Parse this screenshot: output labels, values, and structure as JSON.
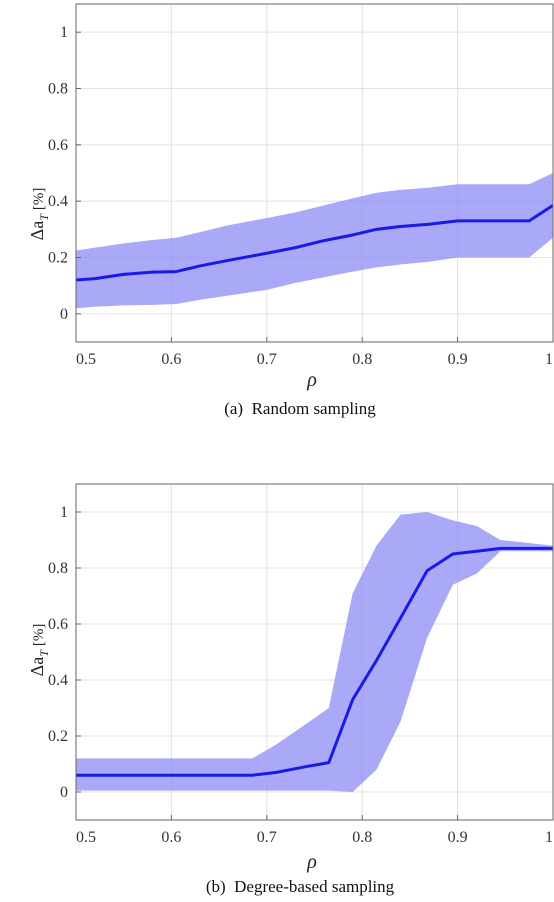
{
  "chart_data": [
    {
      "type": "line",
      "caption": "(a)  Random sampling",
      "xlabel": "ρ",
      "ylabel": {
        "main": "Δa",
        "sub": "T",
        "unit": "[%]"
      },
      "xlim": [
        0.5,
        1.0
      ],
      "ylim": [
        -0.1,
        1.1
      ],
      "xticks": [
        "0.5",
        "0.6",
        "0.7",
        "0.8",
        "0.9",
        "1"
      ],
      "yticks": [
        "0",
        "0.2",
        "0.4",
        "0.6",
        "0.8",
        "1"
      ],
      "grid": true,
      "x": [
        0.5,
        0.52,
        0.55,
        0.58,
        0.605,
        0.63,
        0.66,
        0.7,
        0.73,
        0.76,
        0.79,
        0.815,
        0.84,
        0.87,
        0.9,
        0.93,
        0.95,
        0.975,
        1.0
      ],
      "series": [
        {
          "values": [
            0.12,
            0.125,
            0.14,
            0.148,
            0.15,
            0.17,
            0.19,
            0.215,
            0.235,
            0.26,
            0.28,
            0.3,
            0.31,
            0.318,
            0.33,
            0.33,
            0.33,
            0.33,
            0.385
          ],
          "lower": [
            0.02,
            0.025,
            0.03,
            0.032,
            0.035,
            0.05,
            0.065,
            0.085,
            0.11,
            0.13,
            0.15,
            0.165,
            0.175,
            0.185,
            0.2,
            0.2,
            0.2,
            0.2,
            0.27
          ],
          "upper": [
            0.225,
            0.235,
            0.25,
            0.262,
            0.27,
            0.29,
            0.315,
            0.34,
            0.36,
            0.385,
            0.41,
            0.43,
            0.44,
            0.448,
            0.46,
            0.46,
            0.46,
            0.46,
            0.5
          ]
        }
      ]
    },
    {
      "type": "line",
      "caption": "(b)  Degree-based sampling",
      "xlabel": "ρ",
      "ylabel": {
        "main": "Δa",
        "sub": "T",
        "unit": "[%]"
      },
      "xlim": [
        0.5,
        1.0
      ],
      "ylim": [
        -0.1,
        1.1
      ],
      "xticks": [
        "0.5",
        "0.6",
        "0.7",
        "0.8",
        "0.9",
        "1"
      ],
      "yticks": [
        "0",
        "0.2",
        "0.4",
        "0.6",
        "0.8",
        "1"
      ],
      "grid": true,
      "x": [
        0.5,
        0.6,
        0.685,
        0.71,
        0.74,
        0.765,
        0.79,
        0.815,
        0.84,
        0.868,
        0.895,
        0.92,
        0.945,
        1.0
      ],
      "series": [
        {
          "values": [
            0.06,
            0.06,
            0.06,
            0.07,
            0.09,
            0.105,
            0.33,
            0.47,
            0.62,
            0.79,
            0.85,
            0.86,
            0.87,
            0.87
          ],
          "lower": [
            0.005,
            0.005,
            0.005,
            0.005,
            0.005,
            0.005,
            0.0,
            0.08,
            0.25,
            0.55,
            0.74,
            0.78,
            0.86,
            0.86
          ],
          "upper": [
            0.12,
            0.12,
            0.12,
            0.17,
            0.24,
            0.3,
            0.71,
            0.88,
            0.99,
            1.0,
            0.97,
            0.95,
            0.9,
            0.88
          ]
        }
      ]
    }
  ],
  "colors": {
    "line": "#1a1ae6",
    "band": "#8c8cf5",
    "grid": "#e2e2e2",
    "axis": "#666666"
  }
}
